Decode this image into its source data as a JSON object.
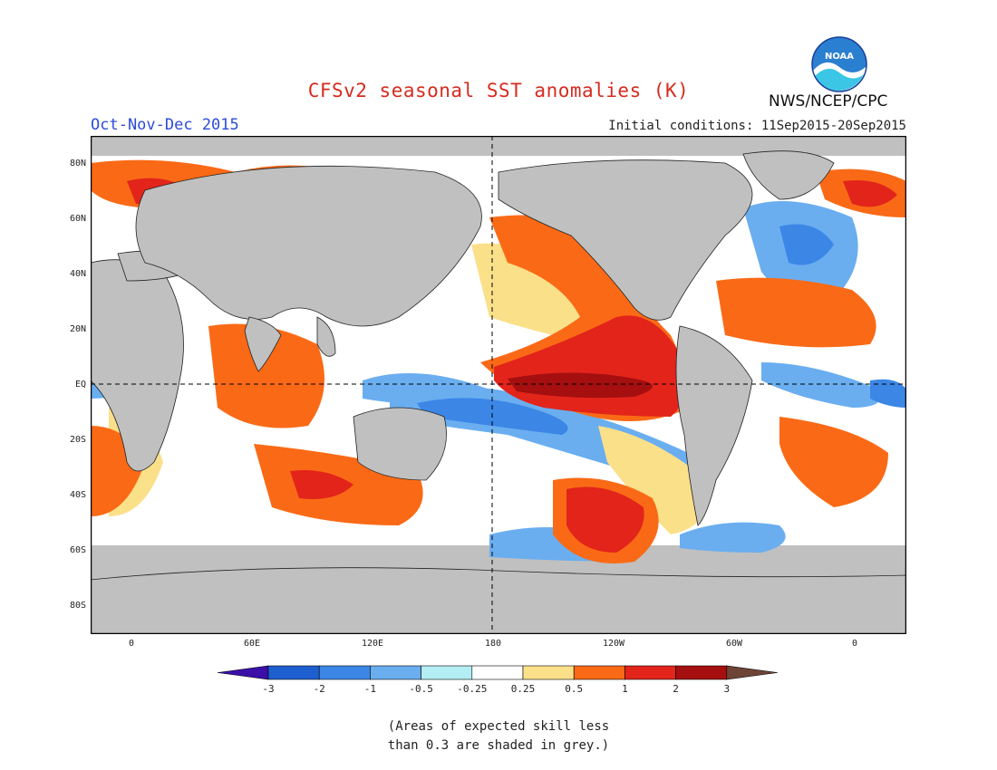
{
  "title": "CFSv2 seasonal SST anomalies (K)",
  "organization": "NWS/NCEP/CPC",
  "logo_text": "NOAA",
  "season": "Oct-Nov-Dec 2015",
  "initial_conditions": "Initial conditions: 11Sep2015-20Sep2015",
  "latitude_labels": [
    "80N",
    "60N",
    "40N",
    "20N",
    "EQ",
    "20S",
    "40S",
    "60S",
    "80S"
  ],
  "longitude_labels": [
    "0",
    "60E",
    "120E",
    "180",
    "120W",
    "60W",
    "0"
  ],
  "colorbar": {
    "tick_labels": [
      "-3",
      "-2",
      "-1",
      "-0.5",
      "-0.25",
      "0.25",
      "0.5",
      "1",
      "2",
      "3"
    ],
    "colors": [
      "#3a10a8",
      "#1e5fcf",
      "#3c86e6",
      "#6aaef0",
      "#b4eef5",
      "#ffffff",
      "#fbe08a",
      "#fa6a16",
      "#e2241b",
      "#a50f0f",
      "#6e4436"
    ]
  },
  "caption_lines": [
    "(Areas of expected skill less",
    "than 0.3 are shaded in grey.)"
  ],
  "colors": {
    "land": "#c0c0c0",
    "title": "#d62b1f",
    "season": "#2b4bd8"
  }
}
